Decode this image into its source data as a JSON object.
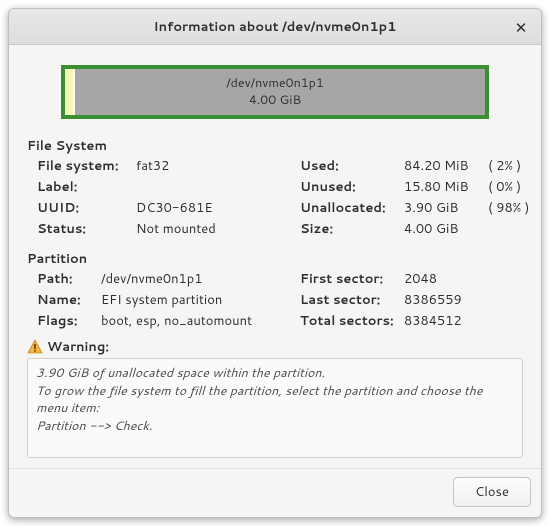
{
  "window": {
    "title": "Information about /dev/nvme0n1p1",
    "close_glyph": "✕"
  },
  "diskbar": {
    "device": "/dev/nvme0n1p1",
    "size": "4.00 GiB",
    "segments": [
      {
        "width_pct": 2.0,
        "color": "#f7f6b2"
      },
      {
        "width_pct": 0.4,
        "color": "#ffffff"
      },
      {
        "width_pct": 97.6,
        "color": "#a6a6a6"
      }
    ],
    "border_color": "#3a8f32"
  },
  "filesystem": {
    "heading": "File System",
    "left": [
      {
        "k": "File system:",
        "v": "fat32"
      },
      {
        "k": "Label:",
        "v": ""
      },
      {
        "k": "UUID:",
        "v": "DC30-681E"
      },
      {
        "k": "Status:",
        "v": "Not mounted"
      }
    ],
    "right": [
      {
        "k": "Used:",
        "v": "84.20 MiB",
        "pct": "( 2% )"
      },
      {
        "k": "Unused:",
        "v": "15.80 MiB",
        "pct": "( 0% )"
      },
      {
        "k": "Unallocated:",
        "v": "3.90 GiB",
        "pct": "( 98% )"
      },
      {
        "k": "Size:",
        "v": "4.00 GiB",
        "pct": ""
      }
    ]
  },
  "partition": {
    "heading": "Partition",
    "left": [
      {
        "k": "Path:",
        "v": "/dev/nvme0n1p1"
      },
      {
        "k": "Name:",
        "v": "EFI system partition"
      },
      {
        "k": "Flags:",
        "v": "boot, esp, no_automount"
      }
    ],
    "right": [
      {
        "k": "First sector:",
        "v": "2048"
      },
      {
        "k": "Last sector:",
        "v": "8386559"
      },
      {
        "k": "Total sectors:",
        "v": "8384512"
      }
    ]
  },
  "warning": {
    "label": "Warning:",
    "lines": [
      "3.90 GiB of unallocated space within the partition.",
      "To grow the file system to fill the partition, select the partition and choose the menu item:",
      "Partition --> Check."
    ],
    "icon_colors": {
      "fill": "#f6b73c",
      "stroke": "#b76e00",
      "bang": "#5a3a00"
    }
  },
  "footer": {
    "close_label": "Close"
  }
}
